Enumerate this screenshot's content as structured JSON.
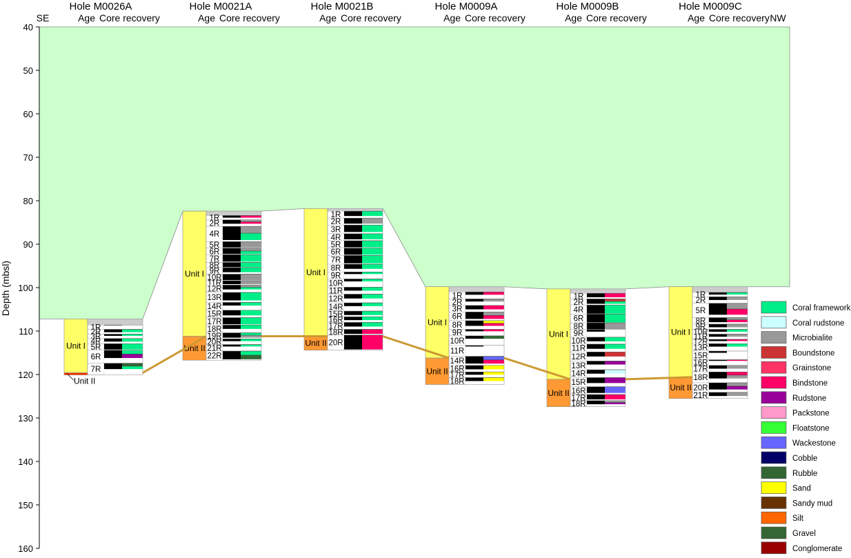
{
  "labels": {
    "se": "SE",
    "nw": "NW",
    "y_axis": "Depth (mbsl)",
    "age": "Age",
    "core_recovery": "Core recovery"
  },
  "y_axis": {
    "min": 40,
    "max": 160,
    "ticks": [
      "40",
      "50",
      "60",
      "70",
      "80",
      "90",
      "100",
      "110",
      "120",
      "130",
      "140",
      "150",
      "160"
    ]
  },
  "colors": {
    "seawater": "#ccffcc",
    "unit_i": "#ffff66",
    "unit_ii": "#ff9933",
    "recovered": "#000000",
    "unrecovered": "#ffffff",
    "cap": "#cccccc",
    "boundary": "#cc9933"
  },
  "legend": [
    {
      "name": "Coral framework",
      "color": "#00ee88"
    },
    {
      "name": "Coral rudstone",
      "color": "#ccffff"
    },
    {
      "name": "Microbialite",
      "color": "#999999"
    },
    {
      "name": "Boundstone",
      "color": "#cc3333"
    },
    {
      "name": "Grainstone",
      "color": "#ff3366"
    },
    {
      "name": "Bindstone",
      "color": "#ff0066"
    },
    {
      "name": "Rudstone",
      "color": "#990099"
    },
    {
      "name": "Packstone",
      "color": "#ff99cc"
    },
    {
      "name": "Floatstone",
      "color": "#33ff33"
    },
    {
      "name": "Wackestone",
      "color": "#6666ff"
    },
    {
      "name": "Cobble",
      "color": "#000066"
    },
    {
      "name": "Rubble",
      "color": "#336633"
    },
    {
      "name": "Sand",
      "color": "#ffff00"
    },
    {
      "name": "Sandy mud",
      "color": "#663300"
    },
    {
      "name": "Silt",
      "color": "#ff6600"
    },
    {
      "name": "Gravel",
      "color": "#336633"
    },
    {
      "name": "Conglomerate",
      "color": "#990000"
    }
  ],
  "holes": [
    {
      "name": "Hole M0026A",
      "top": 107.2,
      "seafloor": 107.2,
      "bottom": 120.1,
      "unit_boundary": 119.6,
      "unit_i_label": "Unit I",
      "unit_ii_label": "Unit II",
      "unit_ii_outside": true,
      "cores": [
        {
          "label": "1R",
          "top": 108.6,
          "bottom": 109.6,
          "rec": 0.1,
          "lith": []
        },
        {
          "label": "2R",
          "top": 109.6,
          "bottom": 110.7,
          "rec": 0.6,
          "lith": [
            "Coral framework"
          ]
        },
        {
          "label": "3R",
          "top": 110.7,
          "bottom": 111.7,
          "rec": 0.4,
          "lith": [
            "Coral framework"
          ]
        },
        {
          "label": "4R",
          "top": 111.7,
          "bottom": 112.9,
          "rec": 0.6,
          "lith": [
            "Coral framework"
          ]
        },
        {
          "label": "5R",
          "top": 112.9,
          "bottom": 114.4,
          "rec": 0.9,
          "lith": [
            "Coral framework"
          ]
        },
        {
          "label": "6R",
          "top": 114.4,
          "bottom": 117.4,
          "rec": 0.6,
          "lith": [
            "Coral framework",
            "Rudstone"
          ]
        },
        {
          "label": "7R",
          "top": 117.4,
          "bottom": 120.1,
          "rec": 0.5,
          "lith": [
            "Rubble",
            "Coral framework"
          ]
        }
      ]
    },
    {
      "name": "Hole M0021A",
      "top": 82.4,
      "seafloor": 82.4,
      "bottom": 116.7,
      "unit_boundary": 111.2,
      "unit_i_label": "Unit I",
      "unit_ii_label": "Unit II",
      "unit_ii_outside": false,
      "cores": [
        {
          "label": "1R",
          "top": 83.4,
          "bottom": 84.4,
          "rec": 0.5,
          "lith": [
            "Bindstone"
          ]
        },
        {
          "label": "2R",
          "top": 84.4,
          "bottom": 85.9,
          "rec": 0.6,
          "lith": [
            "Microbialite",
            "Bindstone"
          ]
        },
        {
          "label": "4R",
          "top": 85.9,
          "bottom": 89.4,
          "rec": 0.9,
          "lith": [
            "Microbialite",
            "Coral framework"
          ]
        },
        {
          "label": "5R",
          "top": 89.4,
          "bottom": 90.9,
          "rec": 0.9,
          "lith": [
            "Microbialite"
          ]
        },
        {
          "label": "6R",
          "top": 90.9,
          "bottom": 92.4,
          "rec": 0.9,
          "lith": [
            "Microbialite",
            "Coral framework"
          ]
        },
        {
          "label": "7R",
          "top": 92.4,
          "bottom": 94.2,
          "rec": 0.9,
          "lith": [
            "Coral framework"
          ]
        },
        {
          "label": "8R",
          "top": 94.2,
          "bottom": 95.4,
          "rec": 0.9,
          "lith": [
            "Coral framework"
          ]
        },
        {
          "label": "9R",
          "top": 95.4,
          "bottom": 96.9,
          "rec": 0.7,
          "lith": [
            "Coral framework"
          ]
        },
        {
          "label": "10R",
          "top": 96.9,
          "bottom": 98.4,
          "rec": 0.9,
          "lith": [
            "Microbialite"
          ]
        },
        {
          "label": "11R",
          "top": 98.4,
          "bottom": 99.4,
          "rec": 0.8,
          "lith": [
            "Microbialite"
          ]
        },
        {
          "label": "12R",
          "top": 99.4,
          "bottom": 101.1,
          "rec": 0.6,
          "lith": [
            "Microbialite",
            "Coral framework"
          ]
        },
        {
          "label": "13R",
          "top": 101.1,
          "bottom": 103.4,
          "rec": 0.8,
          "lith": [
            "Coral framework"
          ]
        },
        {
          "label": "14R",
          "top": 103.4,
          "bottom": 105.2,
          "rec": 0.4,
          "lith": [
            "Coral framework"
          ]
        },
        {
          "label": "15R",
          "top": 105.2,
          "bottom": 106.9,
          "rec": 0.7,
          "lith": [
            "Coral framework"
          ]
        },
        {
          "label": "17R",
          "top": 106.9,
          "bottom": 108.6,
          "rec": 0.9,
          "lith": [
            "Coral framework"
          ]
        },
        {
          "label": "18R",
          "top": 108.6,
          "bottom": 110.4,
          "rec": 0.5,
          "lith": [
            "Coral framework"
          ]
        },
        {
          "label": "19R",
          "top": 110.4,
          "bottom": 111.8,
          "rec": 0.8,
          "lith": [
            "Coral framework",
            "Microbialite"
          ]
        },
        {
          "label": "20R",
          "top": 111.8,
          "bottom": 113.1,
          "rec": 0.4,
          "lith": [
            "Coral framework"
          ]
        },
        {
          "label": "21R",
          "top": 113.1,
          "bottom": 114.6,
          "rec": 0.3,
          "lith": [
            "Coral framework"
          ]
        },
        {
          "label": "22R",
          "top": 114.6,
          "bottom": 116.7,
          "rec": 0.9,
          "lith": [
            "Coral framework",
            "Rubble"
          ]
        }
      ]
    },
    {
      "name": "Hole M0021B",
      "top": 81.8,
      "seafloor": 81.8,
      "bottom": 114.4,
      "unit_boundary": 111.2,
      "unit_i_label": "Unit I",
      "unit_ii_label": "Unit II",
      "unit_ii_outside": false,
      "cores": [
        {
          "label": "1R",
          "top": 82.4,
          "bottom": 84.0,
          "rec": 0.7,
          "lith": [
            "Coral framework"
          ]
        },
        {
          "label": "2R",
          "top": 84.0,
          "bottom": 85.6,
          "rec": 0.8,
          "lith": [
            "Microbialite"
          ]
        },
        {
          "label": "3R",
          "top": 85.6,
          "bottom": 87.6,
          "rec": 0.8,
          "lith": [
            "Coral framework"
          ]
        },
        {
          "label": "4R",
          "top": 87.6,
          "bottom": 89.2,
          "rec": 0.8,
          "lith": [
            "Coral framework"
          ]
        },
        {
          "label": "5R",
          "top": 89.2,
          "bottom": 90.9,
          "rec": 0.9,
          "lith": [
            "Coral framework"
          ]
        },
        {
          "label": "6R",
          "top": 90.9,
          "bottom": 92.6,
          "rec": 0.9,
          "lith": [
            "Coral framework"
          ]
        },
        {
          "label": "7R",
          "top": 92.6,
          "bottom": 94.6,
          "rec": 0.9,
          "lith": [
            "Coral framework"
          ]
        },
        {
          "label": "8R",
          "top": 94.6,
          "bottom": 96.4,
          "rec": 0.6,
          "lith": [
            "Coral framework"
          ]
        },
        {
          "label": "9R",
          "top": 96.4,
          "bottom": 98.0,
          "rec": 0.3,
          "lith": [
            "Coral framework"
          ]
        },
        {
          "label": "10R",
          "top": 98.0,
          "bottom": 99.9,
          "rec": 0.3,
          "lith": [
            "Coral framework"
          ]
        },
        {
          "label": "11R",
          "top": 99.9,
          "bottom": 101.5,
          "rec": 0.5,
          "lith": [
            "Coral framework"
          ]
        },
        {
          "label": "12R",
          "top": 101.5,
          "bottom": 103.5,
          "rec": 0.5,
          "lith": [
            "Coral framework"
          ]
        },
        {
          "label": "14R",
          "top": 103.5,
          "bottom": 105.4,
          "rec": 0.4,
          "lith": [
            "Coral framework"
          ]
        },
        {
          "label": "15R",
          "top": 105.4,
          "bottom": 106.7,
          "rec": 0.7,
          "lith": [
            "Coral framework"
          ]
        },
        {
          "label": "16R",
          "top": 106.7,
          "bottom": 108.0,
          "rec": 0.6,
          "lith": [
            "Coral framework"
          ]
        },
        {
          "label": "17R",
          "top": 108.0,
          "bottom": 109.6,
          "rec": 0.6,
          "lith": [
            "Coral framework"
          ]
        },
        {
          "label": "18R",
          "top": 109.6,
          "bottom": 110.9,
          "rec": 0.8,
          "lith": [
            "Bindstone"
          ]
        },
        {
          "label": "20R",
          "top": 110.9,
          "bottom": 114.4,
          "rec": 0.95,
          "lith": [
            "Bindstone"
          ]
        }
      ]
    },
    {
      "name": "Hole M0009A",
      "top": 99.8,
      "seafloor": 99.8,
      "bottom": 122.3,
      "unit_boundary": 116.2,
      "unit_i_label": "Unit I",
      "unit_ii_label": "Unit II",
      "unit_ii_outside": false,
      "cores": [
        {
          "label": "1R",
          "top": 101.0,
          "bottom": 102.6,
          "rec": 0.4,
          "lith": [
            "Bindstone"
          ]
        },
        {
          "label": "2R",
          "top": 102.6,
          "bottom": 104.1,
          "rec": 0.4,
          "lith": [
            "Microbialite"
          ]
        },
        {
          "label": "3R",
          "top": 104.1,
          "bottom": 105.6,
          "rec": 0.6,
          "lith": [
            "Bindstone"
          ]
        },
        {
          "label": "6R",
          "top": 105.6,
          "bottom": 107.6,
          "rec": 0.8,
          "lith": [
            "Microbialite",
            "Bindstone"
          ]
        },
        {
          "label": "8R",
          "top": 107.6,
          "bottom": 109.6,
          "rec": 0.6,
          "lith": [
            "Sand",
            "Bindstone"
          ]
        },
        {
          "label": "9R",
          "top": 109.6,
          "bottom": 111.1,
          "rec": 0.3,
          "lith": [
            "Bindstone"
          ]
        },
        {
          "label": "10R",
          "top": 111.1,
          "bottom": 113.3,
          "rec": 0.3,
          "lith": [
            "Rubble"
          ]
        },
        {
          "label": "11R",
          "top": 113.3,
          "bottom": 115.8,
          "rec": 0.1,
          "lith": []
        },
        {
          "label": "14R",
          "top": 115.8,
          "bottom": 117.9,
          "rec": 0.8,
          "lith": [
            "Wackestone",
            "Bindstone"
          ]
        },
        {
          "label": "16R",
          "top": 117.9,
          "bottom": 119.4,
          "rec": 0.6,
          "lith": [
            "Sand"
          ]
        },
        {
          "label": "17R",
          "top": 119.4,
          "bottom": 120.7,
          "rec": 0.5,
          "lith": [
            "Sand"
          ]
        },
        {
          "label": "18R",
          "top": 120.7,
          "bottom": 122.3,
          "rec": 0.5,
          "lith": [
            "Sand"
          ]
        }
      ]
    },
    {
      "name": "Hole M0009B",
      "top": 100.3,
      "seafloor": 100.3,
      "bottom": 127.4,
      "unit_boundary": 121.1,
      "unit_i_label": "Unit I",
      "unit_ii_label": "Unit II",
      "unit_ii_outside": false,
      "cores": [
        {
          "label": "1R",
          "top": 101.3,
          "bottom": 102.6,
          "rec": 0.7,
          "lith": [
            "Bindstone"
          ]
        },
        {
          "label": "2R",
          "top": 102.6,
          "bottom": 104.0,
          "rec": 0.8,
          "lith": [
            "Boundstone",
            "Coral framework"
          ]
        },
        {
          "label": "4R",
          "top": 104.0,
          "bottom": 106.1,
          "rec": 0.95,
          "lith": [
            "Coral framework"
          ]
        },
        {
          "label": "6R",
          "top": 106.1,
          "bottom": 108.1,
          "rec": 0.95,
          "lith": [
            "Coral framework"
          ]
        },
        {
          "label": "8R",
          "top": 108.1,
          "bottom": 109.6,
          "rec": 0.95,
          "lith": [
            "Microbialite"
          ]
        },
        {
          "label": "9R",
          "top": 109.6,
          "bottom": 111.4,
          "rec": 0.3,
          "lith": []
        },
        {
          "label": "10R",
          "top": 111.4,
          "bottom": 113.0,
          "rec": 0.6,
          "lith": [
            "Coral framework"
          ]
        },
        {
          "label": "11R",
          "top": 113.0,
          "bottom": 114.8,
          "rec": 0.6,
          "lith": [
            "Coral framework"
          ]
        },
        {
          "label": "12R",
          "top": 114.8,
          "bottom": 116.9,
          "rec": 0.5,
          "lith": [
            "Boundstone"
          ]
        },
        {
          "label": "13R",
          "top": 116.9,
          "bottom": 118.9,
          "rec": 0.4,
          "lith": [
            "Rudstone"
          ]
        },
        {
          "label": "14R",
          "top": 118.9,
          "bottom": 120.7,
          "rec": 0.5,
          "lith": [
            "Coral rudstone"
          ]
        },
        {
          "label": "15R",
          "top": 120.7,
          "bottom": 122.8,
          "rec": 0.6,
          "lith": [
            "Rudstone"
          ]
        },
        {
          "label": "16R",
          "top": 122.8,
          "bottom": 124.6,
          "rec": 0.8,
          "lith": [
            "Wackestone"
          ]
        },
        {
          "label": "17R",
          "top": 124.6,
          "bottom": 126.0,
          "rec": 0.8,
          "lith": [
            "Bindstone"
          ]
        },
        {
          "label": "18R",
          "top": 126.0,
          "bottom": 127.4,
          "rec": 0.6,
          "lith": [
            "Microbialite",
            "Rudstone"
          ]
        }
      ]
    },
    {
      "name": "Hole M0009C",
      "top": 99.8,
      "seafloor": 99.8,
      "bottom": 125.5,
      "unit_boundary": 120.6,
      "unit_i_label": "Unit I",
      "unit_ii_label": "Unit II",
      "unit_ii_outside": false,
      "cores": [
        {
          "label": "1R",
          "top": 101.1,
          "bottom": 102.1,
          "rec": 0.5,
          "lith": [
            "Coral framework"
          ]
        },
        {
          "label": "2R",
          "top": 102.1,
          "bottom": 103.6,
          "rec": 0.5,
          "lith": [
            "Microbialite"
          ]
        },
        {
          "label": "5R",
          "top": 103.6,
          "bottom": 106.9,
          "rec": 0.8,
          "lith": [
            "Microbialite",
            "Bindstone"
          ]
        },
        {
          "label": "8R",
          "top": 106.9,
          "bottom": 108.4,
          "rec": 0.7,
          "lith": [
            "Microbialite",
            "Bindstone"
          ]
        },
        {
          "label": "9R",
          "top": 108.4,
          "bottom": 109.6,
          "rec": 0.6,
          "lith": [
            "Microbialite"
          ]
        },
        {
          "label": "10R",
          "top": 109.6,
          "bottom": 110.7,
          "rec": 0.5,
          "lith": [
            "Coral framework"
          ]
        },
        {
          "label": "11R",
          "top": 110.7,
          "bottom": 111.9,
          "rec": 0.5,
          "lith": [
            "Microbialite"
          ]
        },
        {
          "label": "12R",
          "top": 111.9,
          "bottom": 112.9,
          "rec": 0.4,
          "lith": [
            "Bindstone"
          ]
        },
        {
          "label": "13R",
          "top": 112.9,
          "bottom": 114.6,
          "rec": 0.4,
          "lith": [
            "Coral framework"
          ]
        },
        {
          "label": "15R",
          "top": 114.6,
          "bottom": 116.6,
          "rec": 0.2,
          "lith": []
        },
        {
          "label": "16R",
          "top": 116.6,
          "bottom": 117.9,
          "rec": 0.2,
          "lith": [
            "Bindstone"
          ]
        },
        {
          "label": "17R",
          "top": 117.9,
          "bottom": 119.4,
          "rec": 0.5,
          "lith": [
            "Microbialite"
          ]
        },
        {
          "label": "18R",
          "top": 119.4,
          "bottom": 121.9,
          "rec": 0.6,
          "lith": [
            "Bindstone",
            "Microbialite"
          ]
        },
        {
          "label": "20R",
          "top": 121.9,
          "bottom": 124.1,
          "rec": 0.7,
          "lith": [
            "Microbialite",
            "Rudstone"
          ]
        },
        {
          "label": "21R",
          "top": 124.1,
          "bottom": 125.5,
          "rec": 0.6,
          "lith": [
            "Microbialite"
          ]
        }
      ]
    }
  ]
}
